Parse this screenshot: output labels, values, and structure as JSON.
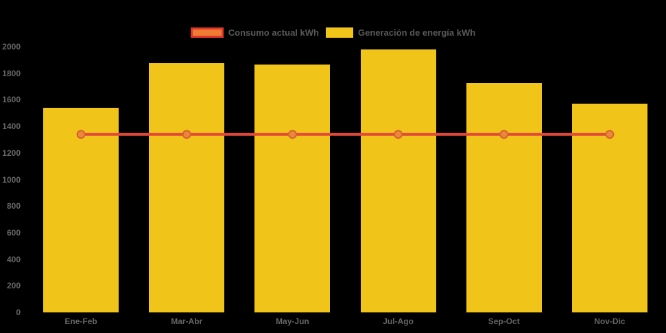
{
  "background": "#000000",
  "colors": {
    "bar": "#F0C419",
    "line": "#E2493B",
    "marker_fill": "#E8893A",
    "marker_stroke": "#D96030",
    "legend_line_fill": "#EF7D31",
    "legend_line_border": "#E2352B",
    "axis_text": "#666666",
    "legend_text": "#58595B"
  },
  "legend": {
    "items": [
      {
        "label": "Consumo actual kWh"
      },
      {
        "label": "Generación de energía kWh"
      }
    ]
  },
  "chart_data": {
    "type": "bar+line",
    "categories": [
      "Ene-Feb",
      "Mar-Abr",
      "May-Jun",
      "Jul-Ago",
      "Sep-Oct",
      "Nov-Dic"
    ],
    "series": [
      {
        "name": "Generación de energía kWh",
        "type": "bar",
        "values": [
          1540,
          1875,
          1865,
          1980,
          1725,
          1570
        ]
      },
      {
        "name": "Consumo actual kWh",
        "type": "line",
        "values": [
          1340,
          1340,
          1340,
          1340,
          1340,
          1340
        ]
      }
    ],
    "ylim": [
      0,
      2000
    ],
    "yticks": [
      0,
      200,
      400,
      600,
      800,
      1000,
      1200,
      1400,
      1600,
      1800,
      2000
    ],
    "grid": false,
    "legend_position": "top"
  }
}
